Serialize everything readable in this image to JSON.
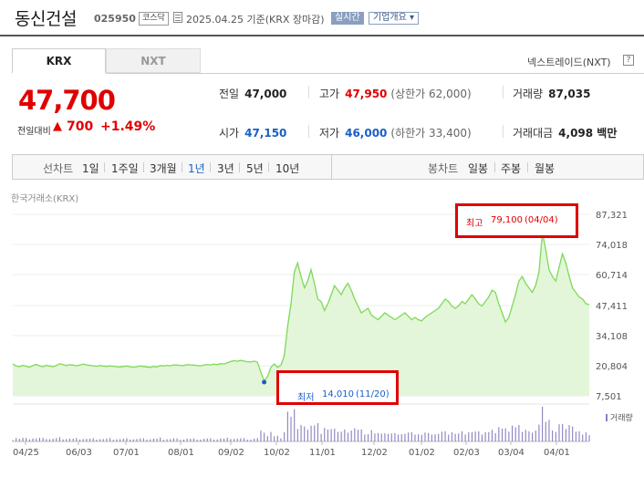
{
  "header": {
    "company_name": "동신건설",
    "code": "025950",
    "market_badge": "코스닥",
    "date_text": "2025.04.25  기준(KRX 장마감)",
    "realtime_badge": "실시간",
    "company_info_label": "기업개요 ▾"
  },
  "tabs": [
    {
      "label": "KRX",
      "active": true
    },
    {
      "label": "NXT",
      "active": false
    }
  ],
  "nxt_link": "넥스트레이드(NXT)",
  "help_icon": "?",
  "quote": {
    "price": "47,700",
    "change_label": "전일대비",
    "change_arrow": "▲",
    "change_amount": "700",
    "change_rate": "+1.49%"
  },
  "stats": {
    "prev_close_label": "전일",
    "prev_close": "47,000",
    "high_label": "고가",
    "high": "47,950",
    "upper_limit": "(상한가 62,000)",
    "volume_label": "거래량",
    "volume": "87,035",
    "open_label": "시가",
    "open": "47,150",
    "low_label": "저가",
    "low": "46,000",
    "lower_limit": "(하한가 33,400)",
    "amount_label": "거래대금",
    "amount": "4,098 백만"
  },
  "period_bar": {
    "line_label": "선차트",
    "line_options": [
      "1일",
      "1주일",
      "3개월",
      "1년",
      "3년",
      "5년",
      "10년"
    ],
    "line_active": "1년",
    "candle_label": "봉차트",
    "candle_options": [
      "일봉",
      "주봉",
      "월봉"
    ]
  },
  "colors": {
    "up": "#e00000",
    "down": "#1a5fc7",
    "line": "#7ed957",
    "area": "#e3f6d9",
    "volume": "#8a7fbf",
    "callout_border": "#e00000"
  },
  "chart_data": {
    "type": "area",
    "source_label": "한국거래소(KRX)",
    "y_ticks": [
      "87,321",
      "74,018",
      "60,714",
      "47,411",
      "34,108",
      "20,804",
      "7,501"
    ],
    "ylim": [
      7501,
      87321
    ],
    "x_ticks": [
      "04/25",
      "06/03",
      "07/01",
      "08/01",
      "09/02",
      "10/02",
      "11/01",
      "12/02",
      "01/02",
      "02/03",
      "03/04",
      "04/01"
    ],
    "series": [
      {
        "values": [
          21500,
          20600,
          20300,
          20900,
          20500,
          20100,
          20800,
          21300,
          20700,
          20300,
          20900,
          20600,
          20300,
          20800,
          21600,
          21200,
          20800,
          21200,
          21000,
          20700,
          21000,
          21400,
          21100,
          20900,
          20700,
          20500,
          20800,
          20600,
          20400,
          20700,
          20500,
          20300,
          20200,
          20400,
          20600,
          20300,
          20100,
          20300,
          20600,
          20400,
          20200,
          20000,
          20400,
          20200,
          20800,
          20600,
          20900,
          20700,
          21100,
          21000,
          20900,
          20800,
          21200,
          21100,
          21000,
          20800,
          20700,
          21000,
          21300,
          21100,
          21400,
          21200,
          21700,
          21500,
          22000,
          22600,
          23000,
          22700,
          23100,
          22800,
          22500,
          22400,
          22800,
          22300,
          18000,
          14010,
          16000,
          20000,
          21500,
          20000,
          21000,
          25000,
          38000,
          48000,
          62000,
          66000,
          60000,
          55000,
          58000,
          63000,
          57000,
          50000,
          49000,
          45000,
          48000,
          52000,
          56000,
          54000,
          52000,
          55000,
          57000,
          54000,
          50000,
          47000,
          44000,
          45000,
          46000,
          43000,
          42000,
          41000,
          42500,
          44000,
          43000,
          42000,
          41000,
          42000,
          43000,
          44000,
          42500,
          41000,
          42000,
          41000,
          40500,
          42000,
          43000,
          44000,
          45000,
          46000,
          48000,
          50000,
          49000,
          47000,
          46000,
          47000,
          49000,
          48000,
          50000,
          52000,
          50000,
          48000,
          47000,
          49000,
          51000,
          54000,
          53000,
          48000,
          44000,
          40000,
          42000,
          47000,
          52000,
          58000,
          60000,
          57000,
          55000,
          53000,
          56000,
          62000,
          79100,
          72000,
          63000,
          60000,
          58000,
          64000,
          70000,
          66000,
          60000,
          55000,
          53000,
          51000,
          50000,
          48000,
          47700
        ]
      }
    ],
    "volume_legend": "거래량",
    "annotations": [
      {
        "label": "최고",
        "value": "79,100",
        "date": "(04/04)"
      },
      {
        "label": "최저",
        "value": "14,010",
        "date": "(11/20)"
      }
    ]
  }
}
